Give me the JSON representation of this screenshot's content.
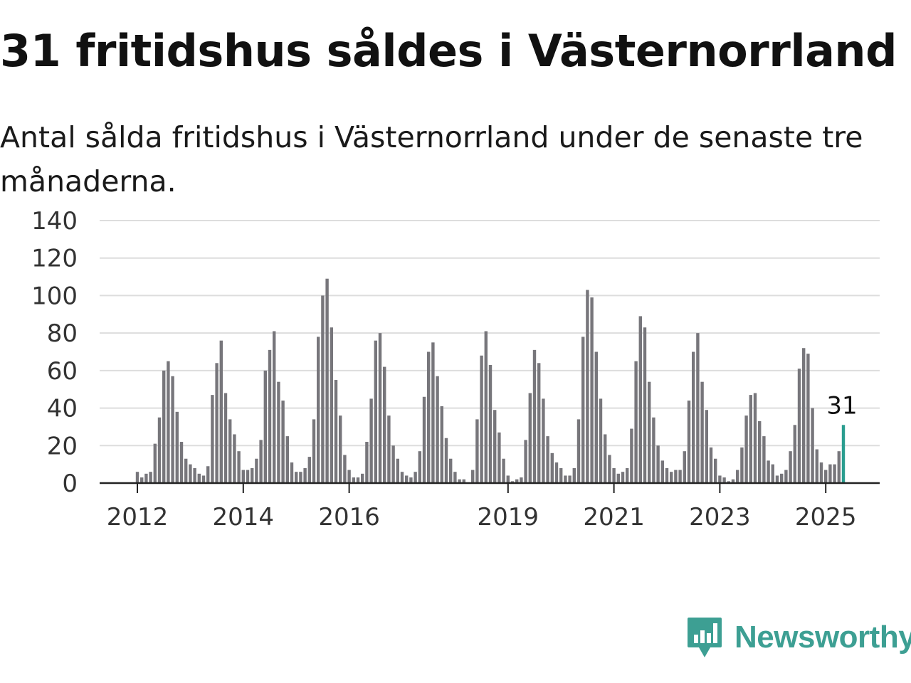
{
  "header": {
    "title": "31 fritidshus såldes i Västernorrland",
    "subtitle": "Antal sålda fritidshus i Västernorrland under de senaste tre månaderna."
  },
  "chart_data": {
    "type": "bar",
    "title": "31 fritidshus såldes i Västernorrland",
    "subtitle": "Antal sålda fritidshus i Västernorrland under de senaste tre månaderna.",
    "xlabel": "",
    "ylabel": "",
    "ylim": [
      0,
      140
    ],
    "yticks": [
      0,
      20,
      40,
      60,
      80,
      100,
      120,
      140
    ],
    "xticks": [
      "2012",
      "2014",
      "2016",
      "2019",
      "2021",
      "2023",
      "2025"
    ],
    "grid": true,
    "bar_color": "#77767b",
    "highlight_color": "#2a9d8f",
    "highlight_label": "31",
    "values": [
      6,
      3,
      5,
      6,
      21,
      35,
      60,
      65,
      57,
      38,
      22,
      13,
      10,
      8,
      5,
      4,
      9,
      47,
      64,
      76,
      48,
      34,
      26,
      17,
      7,
      7,
      8,
      13,
      23,
      60,
      71,
      81,
      54,
      44,
      25,
      11,
      6,
      6,
      8,
      14,
      34,
      78,
      100,
      109,
      83,
      55,
      36,
      15,
      7,
      3,
      3,
      5,
      22,
      45,
      76,
      80,
      62,
      36,
      20,
      13,
      6,
      4,
      3,
      6,
      17,
      46,
      70,
      75,
      57,
      41,
      24,
      13,
      6,
      2,
      2,
      0,
      7,
      34,
      68,
      81,
      63,
      39,
      27,
      13,
      4,
      1,
      2,
      3,
      23,
      48,
      71,
      64,
      45,
      25,
      16,
      11,
      8,
      4,
      4,
      8,
      34,
      78,
      103,
      99,
      70,
      45,
      26,
      15,
      8,
      5,
      6,
      8,
      29,
      65,
      89,
      83,
      54,
      35,
      20,
      12,
      8,
      6,
      7,
      7,
      17,
      44,
      70,
      80,
      54,
      39,
      19,
      13,
      4,
      3,
      1,
      2,
      7,
      19,
      36,
      47,
      48,
      33,
      25,
      12,
      10,
      4,
      5,
      7,
      17,
      31,
      61,
      72,
      69,
      40,
      18,
      11,
      7,
      10,
      10,
      17,
      31
    ]
  },
  "brand": {
    "name": "Newsworthy",
    "color": "#3d9f93",
    "icon": "newsworthy-logo-icon"
  }
}
